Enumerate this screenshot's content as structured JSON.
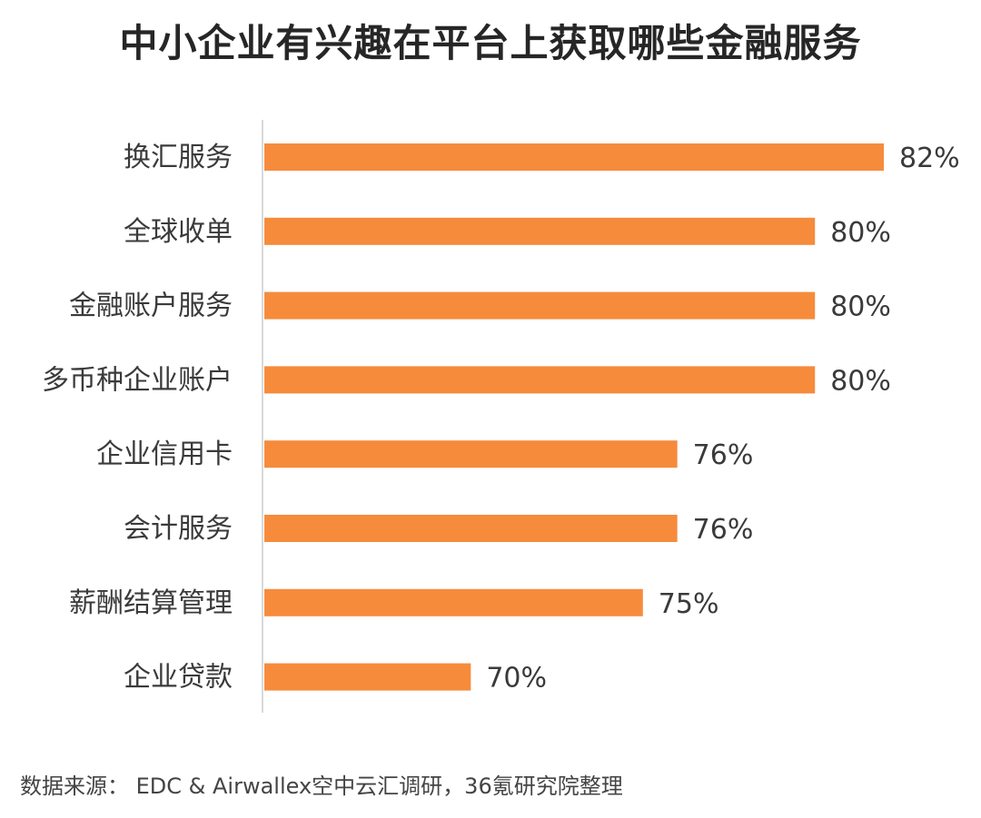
{
  "chart_data": {
    "type": "bar",
    "orientation": "horizontal",
    "title": "中小企业有兴趣在平台上获取哪些金融服务",
    "categories": [
      "换汇服务",
      "全球收单",
      "金融账户服务",
      "多币种企业账户",
      "企业信用卡",
      "会计服务",
      "薪酬结算管理",
      "企业贷款"
    ],
    "values": [
      82,
      80,
      80,
      80,
      76,
      76,
      75,
      70
    ],
    "data_labels": [
      "82%",
      "80%",
      "80%",
      "80%",
      "76%",
      "76%",
      "75%",
      "70%"
    ],
    "value_unit": "%",
    "xlim": [
      64,
      82
    ],
    "grid": false,
    "bar_color": "#F68B3C"
  },
  "source": "数据来源： EDC & Airwallex空中云汇调研，36氪研究院整理"
}
